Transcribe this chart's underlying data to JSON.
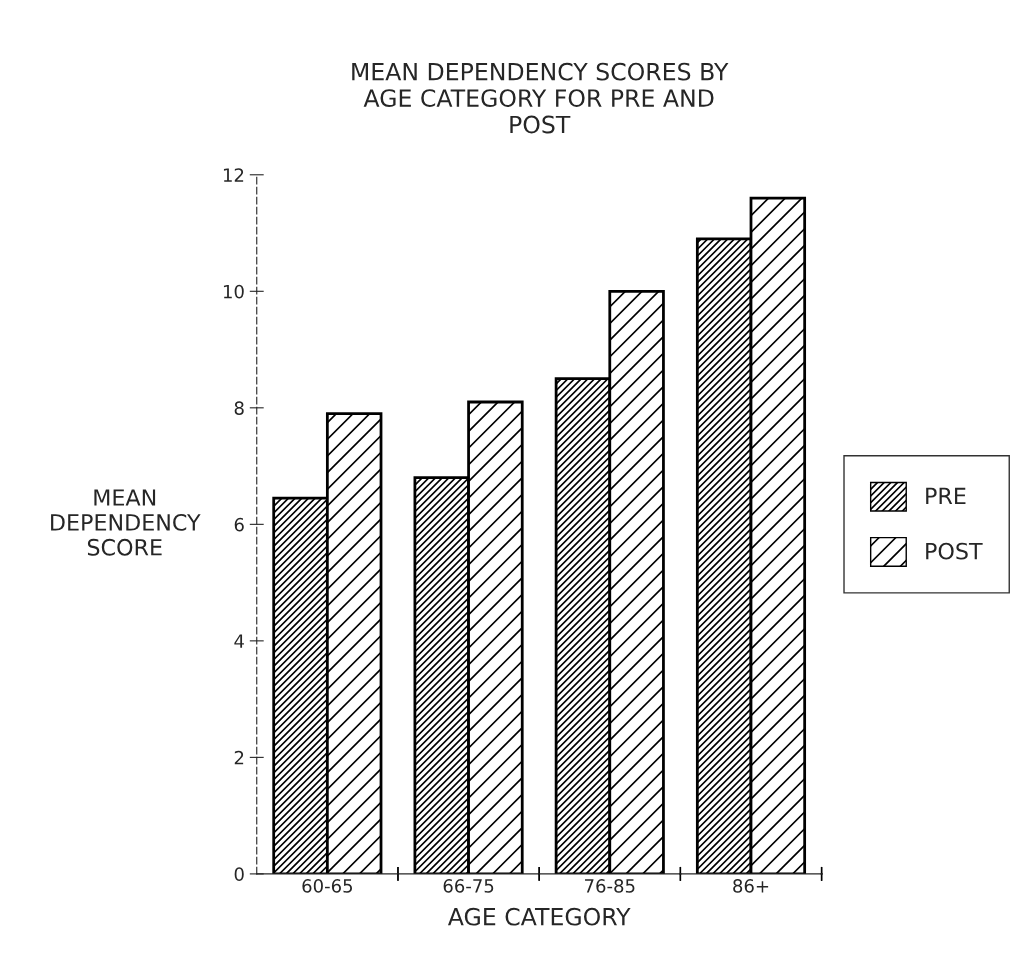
{
  "chart_data": {
    "type": "bar",
    "title": "MEAN DEPENDENCY SCORES BY\nAGE CATEGORY FOR PRE AND\nPOST",
    "xlabel": "AGE CATEGORY",
    "ylabel": "MEAN\nDEPENDENCY\nSCORE",
    "categories": [
      "60-65",
      "66-75",
      "76-85",
      "86+"
    ],
    "series": [
      {
        "name": "PRE",
        "color": "#000000",
        "values": [
          6.45,
          6.8,
          8.5,
          10.9
        ]
      },
      {
        "name": "POST",
        "color": "#000000",
        "values": [
          7.9,
          8.1,
          10.0,
          11.6
        ]
      }
    ],
    "ylim": [
      0,
      12
    ],
    "yticks": [
      0,
      2,
      4,
      6,
      8,
      10,
      12
    ],
    "grid": false,
    "legend": "right"
  }
}
